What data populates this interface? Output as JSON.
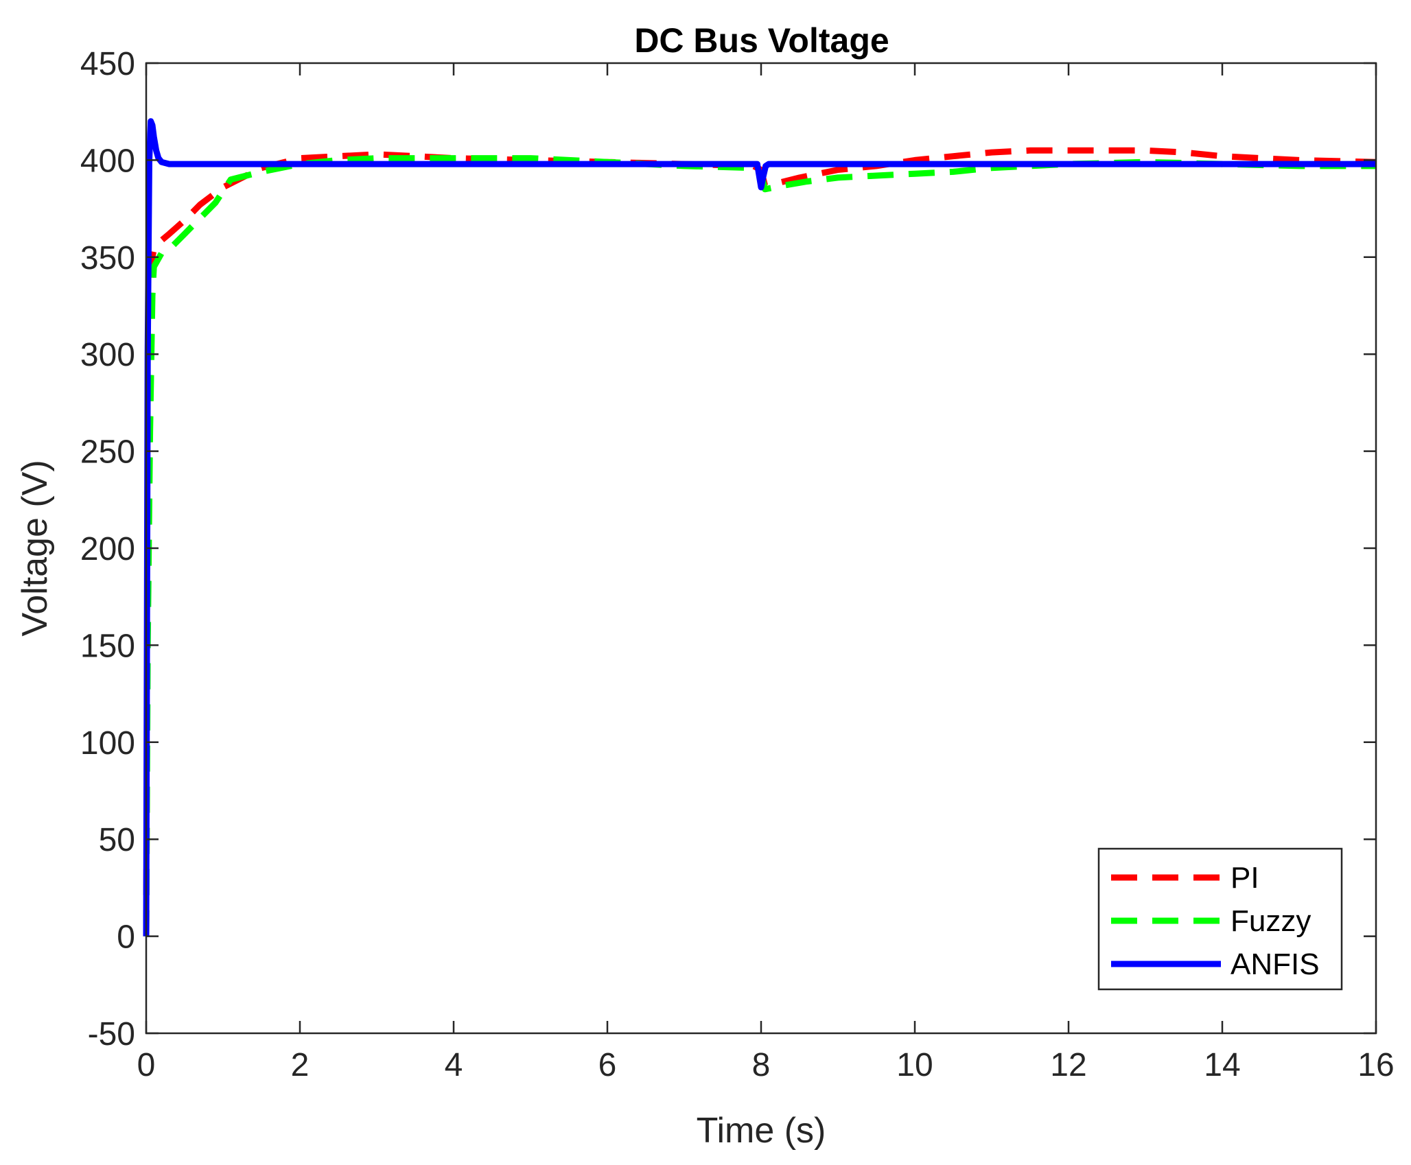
{
  "chart_data": {
    "type": "line",
    "title": "DC Bus Voltage",
    "xlabel": "Time (s)",
    "ylabel": "Voltage (V)",
    "xlim": [
      0,
      16
    ],
    "ylim": [
      -50,
      450
    ],
    "xticks": [
      0,
      2,
      4,
      6,
      8,
      10,
      12,
      14,
      16
    ],
    "yticks": [
      -50,
      0,
      50,
      100,
      150,
      200,
      250,
      300,
      350,
      400,
      450
    ],
    "grid": false,
    "legend_position": "bottom-right",
    "series": [
      {
        "name": "PI",
        "color": "#ff0000",
        "style": "dashed",
        "x": [
          0,
          0.02,
          0.05,
          0.08,
          0.1,
          0.15,
          0.3,
          0.5,
          0.7,
          1.0,
          1.5,
          2.0,
          2.5,
          3.0,
          3.5,
          4.0,
          5.0,
          6.0,
          7.0,
          7.9,
          8.0,
          8.05,
          8.2,
          8.5,
          9.0,
          9.5,
          10.0,
          10.5,
          11.0,
          11.5,
          12.0,
          12.5,
          13.0,
          13.5,
          14.0,
          15.0,
          16.0
        ],
        "y": [
          0,
          200,
          320,
          350,
          354,
          357,
          362,
          369,
          377,
          386,
          396,
          401,
          402,
          403,
          402,
          401,
          400,
          399,
          398,
          397,
          395,
          387,
          388,
          391,
          395,
          397,
          400,
          402,
          404,
          405,
          405,
          405,
          405,
          404,
          402,
          400,
          399
        ]
      },
      {
        "name": "Fuzzy",
        "color": "#00ff00",
        "style": "dashed",
        "x": [
          0,
          0.02,
          0.05,
          0.08,
          0.1,
          0.2,
          0.35,
          0.5,
          0.7,
          0.9,
          1.0,
          1.1,
          1.5,
          2.0,
          2.5,
          3.0,
          3.5,
          4.0,
          5.0,
          6.0,
          7.0,
          7.9,
          8.0,
          8.05,
          8.3,
          8.6,
          9.0,
          9.5,
          10.0,
          10.5,
          11.0,
          11.5,
          12.0,
          13.0,
          14.0,
          15.0,
          16.0
        ],
        "y": [
          0,
          150,
          260,
          330,
          345,
          352,
          356,
          362,
          370,
          378,
          384,
          390,
          394,
          398,
          400,
          401,
          401,
          401,
          401,
          399,
          397,
          396,
          393,
          385,
          387,
          389,
          391,
          392,
          393,
          394,
          396,
          397,
          398,
          399,
          398,
          397,
          397
        ]
      },
      {
        "name": "ANFIS",
        "color": "#0000ff",
        "style": "solid",
        "x": [
          0,
          0.02,
          0.04,
          0.06,
          0.08,
          0.1,
          0.13,
          0.16,
          0.2,
          0.3,
          0.5,
          1.0,
          2.0,
          4.0,
          6.0,
          7.95,
          8.0,
          8.03,
          8.06,
          8.1,
          9.0,
          10.0,
          12.0,
          14.0,
          16.0
        ],
        "y": [
          0,
          300,
          400,
          420,
          418,
          412,
          405,
          401,
          399,
          398,
          398,
          398,
          398,
          398,
          398,
          398,
          386,
          392,
          397,
          398,
          398,
          398,
          398,
          398,
          398
        ]
      }
    ]
  }
}
